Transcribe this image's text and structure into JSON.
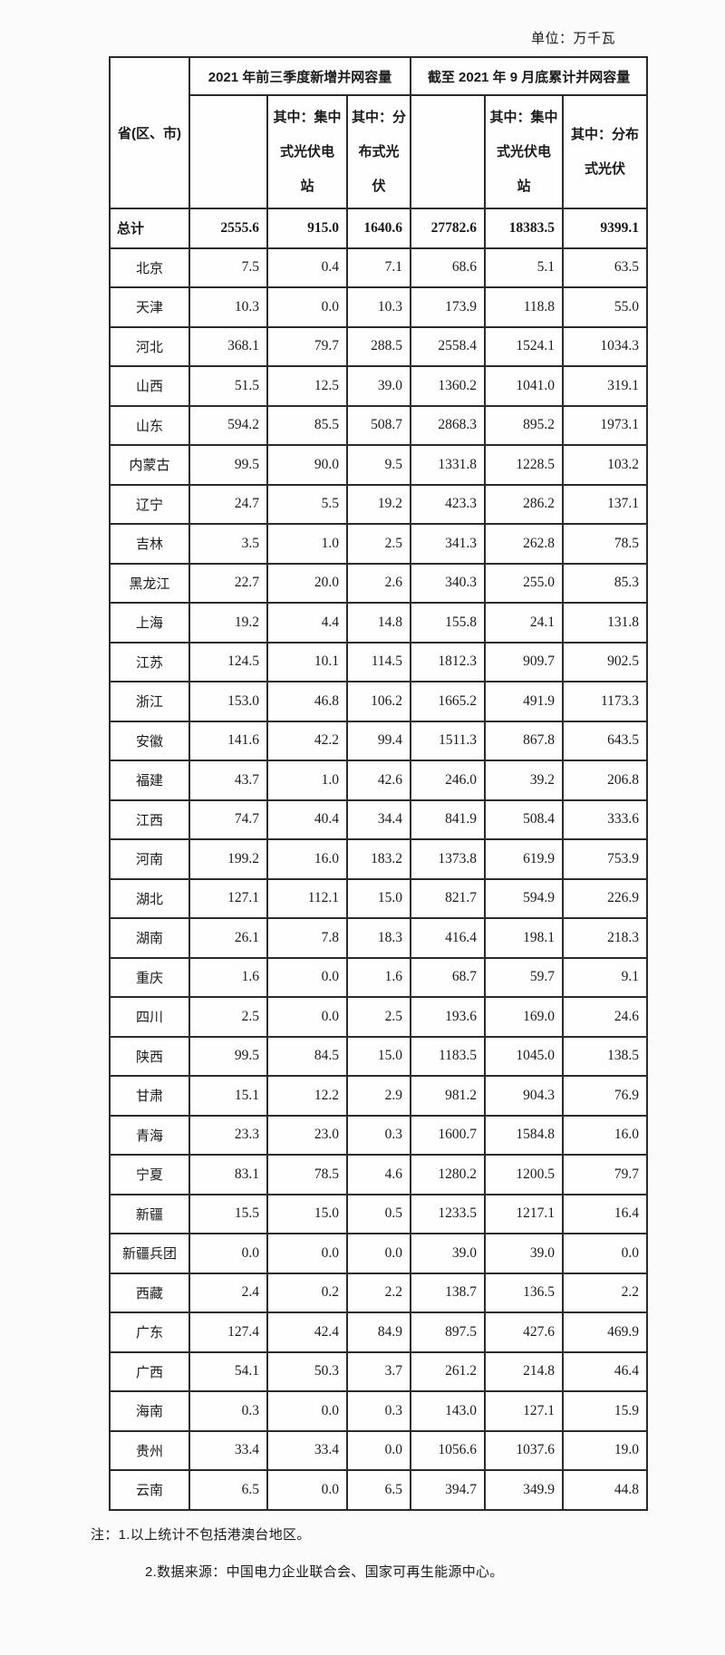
{
  "unit_label": "单位：万千瓦",
  "table": {
    "corner_header": "省(区、市)",
    "group_headers": [
      "2021 年前三季度新增并网容量",
      "截至 2021 年 9 月底累计并网容量"
    ],
    "sub_headers": [
      "",
      "其中：集中\n式光伏电\n站",
      "其中：分\n布式光\n伏",
      "",
      "其中：集中\n式光伏电\n站",
      "其中：分布\n式光伏"
    ],
    "total_row": {
      "label": "总计",
      "values": [
        "2555.6",
        "915.0",
        "1640.6",
        "27782.6",
        "18383.5",
        "9399.1"
      ]
    },
    "rows": [
      {
        "label": "北京",
        "values": [
          "7.5",
          "0.4",
          "7.1",
          "68.6",
          "5.1",
          "63.5"
        ]
      },
      {
        "label": "天津",
        "values": [
          "10.3",
          "0.0",
          "10.3",
          "173.9",
          "118.8",
          "55.0"
        ]
      },
      {
        "label": "河北",
        "values": [
          "368.1",
          "79.7",
          "288.5",
          "2558.4",
          "1524.1",
          "1034.3"
        ]
      },
      {
        "label": "山西",
        "values": [
          "51.5",
          "12.5",
          "39.0",
          "1360.2",
          "1041.0",
          "319.1"
        ]
      },
      {
        "label": "山东",
        "values": [
          "594.2",
          "85.5",
          "508.7",
          "2868.3",
          "895.2",
          "1973.1"
        ]
      },
      {
        "label": "内蒙古",
        "values": [
          "99.5",
          "90.0",
          "9.5",
          "1331.8",
          "1228.5",
          "103.2"
        ]
      },
      {
        "label": "辽宁",
        "values": [
          "24.7",
          "5.5",
          "19.2",
          "423.3",
          "286.2",
          "137.1"
        ]
      },
      {
        "label": "吉林",
        "values": [
          "3.5",
          "1.0",
          "2.5",
          "341.3",
          "262.8",
          "78.5"
        ]
      },
      {
        "label": "黑龙江",
        "values": [
          "22.7",
          "20.0",
          "2.6",
          "340.3",
          "255.0",
          "85.3"
        ]
      },
      {
        "label": "上海",
        "values": [
          "19.2",
          "4.4",
          "14.8",
          "155.8",
          "24.1",
          "131.8"
        ]
      },
      {
        "label": "江苏",
        "values": [
          "124.5",
          "10.1",
          "114.5",
          "1812.3",
          "909.7",
          "902.5"
        ]
      },
      {
        "label": "浙江",
        "values": [
          "153.0",
          "46.8",
          "106.2",
          "1665.2",
          "491.9",
          "1173.3"
        ]
      },
      {
        "label": "安徽",
        "values": [
          "141.6",
          "42.2",
          "99.4",
          "1511.3",
          "867.8",
          "643.5"
        ]
      },
      {
        "label": "福建",
        "values": [
          "43.7",
          "1.0",
          "42.6",
          "246.0",
          "39.2",
          "206.8"
        ]
      },
      {
        "label": "江西",
        "values": [
          "74.7",
          "40.4",
          "34.4",
          "841.9",
          "508.4",
          "333.6"
        ]
      },
      {
        "label": "河南",
        "values": [
          "199.2",
          "16.0",
          "183.2",
          "1373.8",
          "619.9",
          "753.9"
        ]
      },
      {
        "label": "湖北",
        "values": [
          "127.1",
          "112.1",
          "15.0",
          "821.7",
          "594.9",
          "226.9"
        ]
      },
      {
        "label": "湖南",
        "values": [
          "26.1",
          "7.8",
          "18.3",
          "416.4",
          "198.1",
          "218.3"
        ]
      },
      {
        "label": "重庆",
        "values": [
          "1.6",
          "0.0",
          "1.6",
          "68.7",
          "59.7",
          "9.1"
        ]
      },
      {
        "label": "四川",
        "values": [
          "2.5",
          "0.0",
          "2.5",
          "193.6",
          "169.0",
          "24.6"
        ]
      },
      {
        "label": "陕西",
        "values": [
          "99.5",
          "84.5",
          "15.0",
          "1183.5",
          "1045.0",
          "138.5"
        ]
      },
      {
        "label": "甘肃",
        "values": [
          "15.1",
          "12.2",
          "2.9",
          "981.2",
          "904.3",
          "76.9"
        ]
      },
      {
        "label": "青海",
        "values": [
          "23.3",
          "23.0",
          "0.3",
          "1600.7",
          "1584.8",
          "16.0"
        ]
      },
      {
        "label": "宁夏",
        "values": [
          "83.1",
          "78.5",
          "4.6",
          "1280.2",
          "1200.5",
          "79.7"
        ]
      },
      {
        "label": "新疆",
        "values": [
          "15.5",
          "15.0",
          "0.5",
          "1233.5",
          "1217.1",
          "16.4"
        ]
      },
      {
        "label": "新疆兵团",
        "values": [
          "0.0",
          "0.0",
          "0.0",
          "39.0",
          "39.0",
          "0.0"
        ]
      },
      {
        "label": "西藏",
        "values": [
          "2.4",
          "0.2",
          "2.2",
          "138.7",
          "136.5",
          "2.2"
        ]
      },
      {
        "label": "广东",
        "values": [
          "127.4",
          "42.4",
          "84.9",
          "897.5",
          "427.6",
          "469.9"
        ]
      },
      {
        "label": "广西",
        "values": [
          "54.1",
          "50.3",
          "3.7",
          "261.2",
          "214.8",
          "46.4"
        ]
      },
      {
        "label": "海南",
        "values": [
          "0.3",
          "0.0",
          "0.3",
          "143.0",
          "127.1",
          "15.9"
        ]
      },
      {
        "label": "贵州",
        "values": [
          "33.4",
          "33.4",
          "0.0",
          "1056.6",
          "1037.6",
          "19.0"
        ]
      },
      {
        "label": "云南",
        "values": [
          "6.5",
          "0.0",
          "6.5",
          "394.7",
          "349.9",
          "44.8"
        ]
      }
    ]
  },
  "notes": [
    "注：1.以上统计不包括港澳台地区。",
    "2.数据来源：中国电力企业联合会、国家可再生能源中心。"
  ]
}
